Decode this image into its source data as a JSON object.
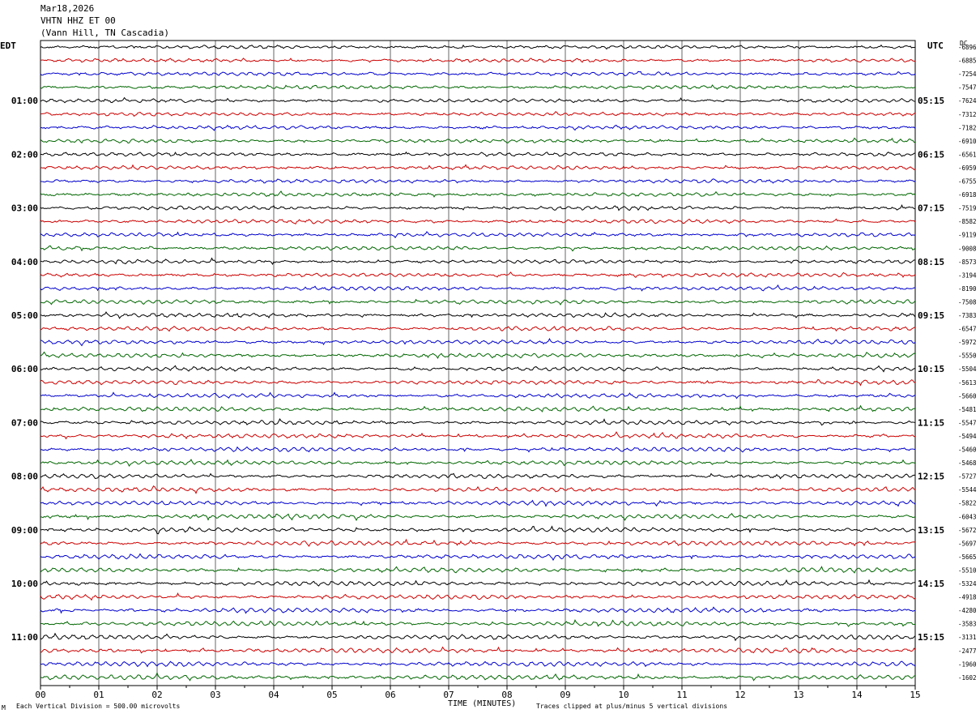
{
  "header": {
    "date": "Mar18,2026",
    "station": "VHTN HHZ ET 00",
    "location": "(Vann Hill, TN Cascadia)"
  },
  "left_tz": "EDT",
  "right_tz": "UTC",
  "dc_label": "DC",
  "footer": {
    "division": "Each Vertical Division =  500.00 microvolts",
    "xlabel": "TIME (MINUTES)",
    "clip_note": "Traces clipped at plus/minus 5 vertical divisions",
    "corner_mark": "M"
  },
  "colors": {
    "trace_cycle": [
      "#000000",
      "#cc0000",
      "#0000cc",
      "#006600"
    ],
    "grid": "#000000",
    "background": "#ffffff"
  },
  "chart_data": {
    "type": "line",
    "title": "VHTN HHZ ET 00",
    "xlabel": "TIME (MINUTES)",
    "ylabel": "",
    "xlim": [
      0,
      15
    ],
    "x_ticks": [
      "00",
      "01",
      "02",
      "03",
      "04",
      "05",
      "06",
      "07",
      "08",
      "09",
      "10",
      "11",
      "12",
      "13",
      "14",
      "15"
    ],
    "traces_per_hour": 4,
    "left_hour_labels": [
      "01:00",
      "02:00",
      "03:00",
      "04:00",
      "05:00",
      "06:00",
      "07:00",
      "08:00",
      "09:00",
      "10:00",
      "11:00"
    ],
    "right_hour_labels": [
      "05:15",
      "06:15",
      "07:15",
      "08:15",
      "09:15",
      "10:15",
      "11:15",
      "12:15",
      "13:15",
      "14:15",
      "15:15"
    ],
    "dc_offsets": [
      "-6896",
      "-6885",
      "-7254",
      "-7547",
      "-7624",
      "-7312",
      "-7182",
      "-6910",
      "-6561",
      "-6959",
      "-6755",
      "-6918",
      "-7519",
      "-8582",
      "-9119",
      "-9008",
      "-8573",
      "-3194",
      "-8190",
      "-7508",
      "-7383",
      "-6547",
      "-5972",
      "-5550",
      "-5504",
      "-5613",
      "-5660",
      "-5481",
      "-5547",
      "-5494",
      "-5460",
      "-5468",
      "-5727",
      "-5544",
      "-5822",
      "-6043",
      "-5672",
      "-5697",
      "-5665",
      "-5510",
      "-5324",
      "-4918",
      "-4280",
      "-3583",
      "-3131",
      "-2477",
      "-1960",
      "-1602"
    ]
  }
}
